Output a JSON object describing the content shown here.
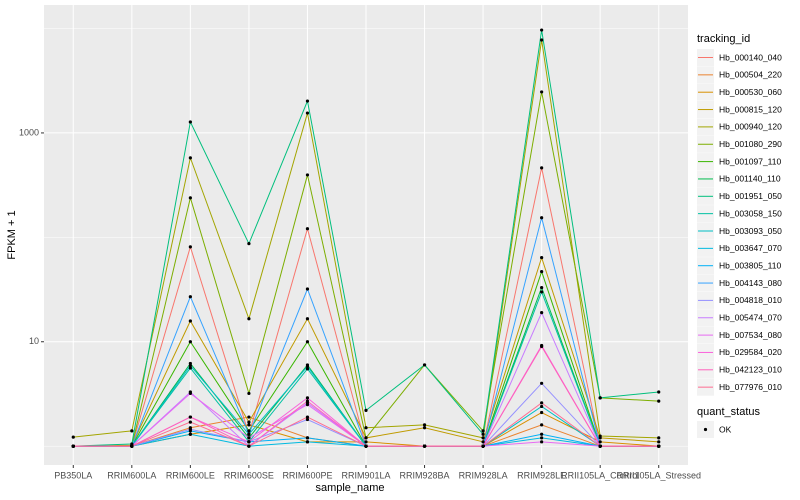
{
  "chart_data": {
    "type": "line",
    "x_label": "sample_name",
    "y_label": "FPKM + 1",
    "log_scale_y": true,
    "grid": true,
    "ylim": [
      0.66,
      16800
    ],
    "yticks": [
      10,
      1000
    ],
    "categories": [
      "PB350LA",
      "RRIM600LA",
      "RRIM600LE",
      "RRIM600SE",
      "RRIM600PE",
      "RRIM901LA",
      "RRIM928BA",
      "RRIM928LA",
      "RRIM928LE",
      "RRII105LA_Control",
      "RRII105LA_Stressed"
    ],
    "legend_title": "tracking_id",
    "series": [
      {
        "name": "Hb_000140_040",
        "color": "#F8766D",
        "values": [
          1.0,
          1.0,
          81,
          1.3,
          121,
          1.0,
          1.0,
          1.0,
          463,
          1.0,
          1.0
        ]
      },
      {
        "name": "Hb_000504_220",
        "color": "#EA8331",
        "values": [
          1.0,
          1.0,
          1.5,
          1.9,
          1.2,
          1.0,
          1.0,
          1.0,
          1.6,
          1.0,
          1.0
        ]
      },
      {
        "name": "Hb_000530_060",
        "color": "#D89000",
        "values": [
          1.0,
          1.0,
          1.3,
          1.6,
          1.1,
          1.1,
          1.0,
          1.0,
          2.1,
          1.1,
          1.0
        ]
      },
      {
        "name": "Hb_000815_120",
        "color": "#C09B00",
        "values": [
          1.0,
          1.02,
          15.8,
          1.7,
          16.6,
          1.2,
          1.5,
          1.1,
          64,
          1.2,
          1.1
        ]
      },
      {
        "name": "Hb_000940_120",
        "color": "#A3A500",
        "values": [
          1.22,
          1.4,
          577,
          16.6,
          1550,
          1.5,
          1.6,
          1.2,
          7770,
          1.25,
          1.2
        ]
      },
      {
        "name": "Hb_001080_290",
        "color": "#7CAE00",
        "values": [
          1.0,
          1.0,
          239,
          3.2,
          396,
          1.2,
          6.0,
          1.4,
          2470,
          2.9,
          2.7
        ]
      },
      {
        "name": "Hb_001097_110",
        "color": "#39B600",
        "values": [
          1.0,
          1.0,
          10,
          1.4,
          10,
          1.0,
          1.0,
          1.0,
          47,
          1.0,
          1.0
        ]
      },
      {
        "name": "Hb_001140_110",
        "color": "#00BB4E",
        "values": [
          1.0,
          1.0,
          6.2,
          1.2,
          6.0,
          1.0,
          1.0,
          1.0,
          33,
          1.0,
          1.0
        ]
      },
      {
        "name": "Hb_001951_050",
        "color": "#00BF7D",
        "values": [
          1.0,
          1.05,
          1274,
          87,
          2020,
          2.2,
          6.0,
          1.3,
          9670,
          2.9,
          3.3
        ]
      },
      {
        "name": "Hb_003058_150",
        "color": "#00C1A3",
        "values": [
          1.0,
          1.0,
          5.6,
          1.1,
          5.5,
          1.0,
          1.0,
          1.0,
          30,
          1.0,
          1.0
        ]
      },
      {
        "name": "Hb_003093_050",
        "color": "#00BFC4",
        "values": [
          1.0,
          1.0,
          5.9,
          1.3,
          5.8,
          1.0,
          1.0,
          1.0,
          2.4,
          1.0,
          1.0
        ]
      },
      {
        "name": "Hb_003647_070",
        "color": "#00BAE0",
        "values": [
          1.0,
          1.0,
          1.3,
          1.0,
          1.1,
          1.0,
          1.0,
          1.0,
          1.2,
          1.0,
          1.0
        ]
      },
      {
        "name": "Hb_003805_110",
        "color": "#00B0F6",
        "values": [
          1.0,
          1.0,
          1.4,
          1.1,
          1.2,
          1.0,
          1.0,
          1.0,
          1.3,
          1.0,
          1.0
        ]
      },
      {
        "name": "Hb_004143_080",
        "color": "#35A2FF",
        "values": [
          1.0,
          1.0,
          27,
          1.3,
          32,
          1.0,
          1.0,
          1.0,
          154,
          1.0,
          1.0
        ]
      },
      {
        "name": "Hb_004818_010",
        "color": "#9590FF",
        "values": [
          1.0,
          1.0,
          1.45,
          1.1,
          1.8,
          1.0,
          1.0,
          1.0,
          4.0,
          1.0,
          1.0
        ]
      },
      {
        "name": "Hb_005474_070",
        "color": "#C77CFF",
        "values": [
          1.0,
          1.0,
          3.3,
          1.0,
          2.6,
          1.0,
          1.0,
          1.0,
          19,
          1.0,
          1.0
        ]
      },
      {
        "name": "Hb_007534_080",
        "color": "#E76BF3",
        "values": [
          1.0,
          1.0,
          3.2,
          1.2,
          2.5,
          1.0,
          1.0,
          1.0,
          1.1,
          1.0,
          1.0
        ]
      },
      {
        "name": "Hb_029584_020",
        "color": "#FA62DB",
        "values": [
          1.0,
          1.0,
          1.9,
          1.1,
          2.9,
          1.0,
          1.0,
          1.0,
          9.2,
          1.0,
          1.0
        ]
      },
      {
        "name": "Hb_042123_010",
        "color": "#FF62BC",
        "values": [
          1.0,
          1.0,
          1.9,
          1.0,
          2.7,
          1.0,
          1.0,
          1.0,
          9.0,
          1.0,
          1.0
        ]
      },
      {
        "name": "Hb_077976_010",
        "color": "#FF6C91",
        "values": [
          1.0,
          1.0,
          1.7,
          1.0,
          1.9,
          1.0,
          1.0,
          1.0,
          2.6,
          1.0,
          1.0
        ]
      }
    ],
    "point_legend_title": "quant_status",
    "point_legend_label": "OK",
    "point_color": "#000000"
  }
}
